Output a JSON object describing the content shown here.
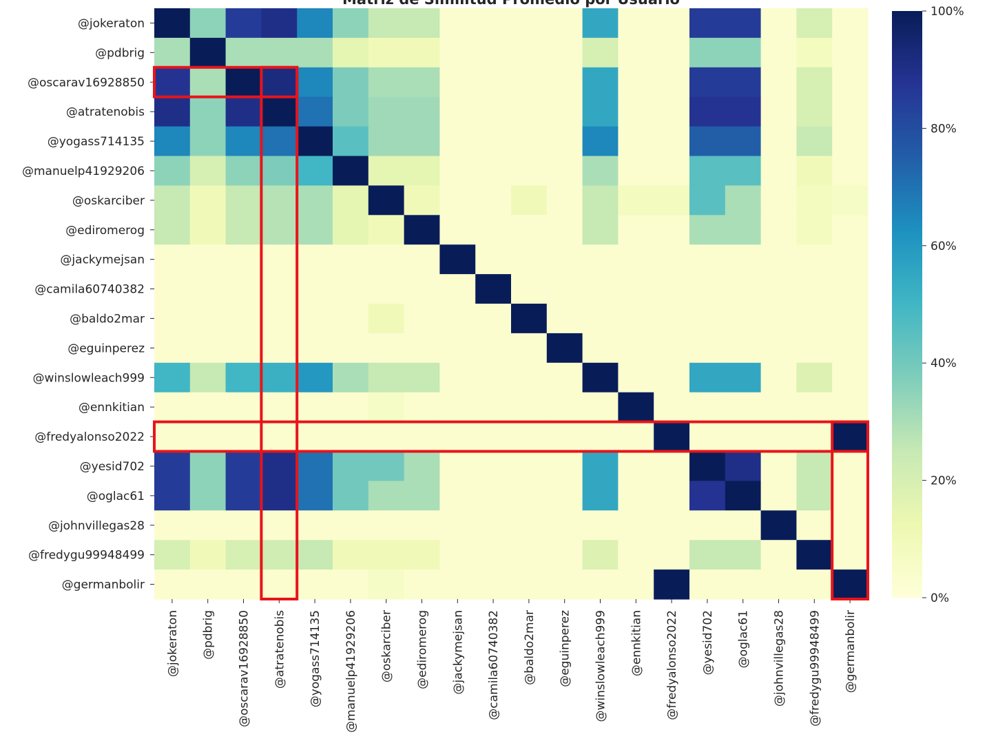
{
  "chart_data": {
    "type": "heatmap",
    "title": "Matriz de Similitud Promedio por Usuario",
    "labels": [
      "@jokeraton",
      "@pdbrig",
      "@oscarav16928850",
      "@atratenobis",
      "@yogass714135",
      "@manuelp41929206",
      "@oskarciber",
      "@ediromerog",
      "@jackymejsan",
      "@camila60740382",
      "@baldo2mar",
      "@eguinperez",
      "@winslowleach999",
      "@ennkitian",
      "@fredyalonso2022",
      "@yesid702",
      "@oglac61",
      "@johnvillegas28",
      "@fredygu99948499",
      "@germanbolir"
    ],
    "values": [
      [
        100,
        35,
        85,
        90,
        65,
        35,
        25,
        25,
        3,
        3,
        3,
        3,
        55,
        3,
        3,
        85,
        85,
        3,
        20,
        3
      ],
      [
        30,
        100,
        30,
        30,
        30,
        15,
        10,
        10,
        3,
        3,
        3,
        3,
        20,
        3,
        3,
        35,
        35,
        3,
        8,
        3
      ],
      [
        88,
        30,
        100,
        92,
        65,
        38,
        30,
        30,
        3,
        3,
        3,
        3,
        55,
        3,
        3,
        85,
        85,
        3,
        20,
        3
      ],
      [
        90,
        35,
        90,
        100,
        70,
        38,
        32,
        32,
        3,
        3,
        3,
        3,
        55,
        3,
        3,
        88,
        88,
        3,
        20,
        3
      ],
      [
        65,
        35,
        65,
        70,
        100,
        45,
        32,
        32,
        3,
        3,
        3,
        3,
        65,
        3,
        3,
        75,
        75,
        3,
        25,
        3
      ],
      [
        35,
        20,
        35,
        38,
        50,
        100,
        15,
        15,
        3,
        3,
        3,
        3,
        30,
        3,
        3,
        45,
        45,
        3,
        10,
        3
      ],
      [
        25,
        10,
        25,
        28,
        30,
        15,
        100,
        10,
        3,
        3,
        10,
        3,
        25,
        8,
        8,
        45,
        30,
        3,
        8,
        6
      ],
      [
        25,
        10,
        25,
        28,
        30,
        15,
        10,
        100,
        3,
        3,
        3,
        3,
        25,
        3,
        3,
        30,
        30,
        3,
        8,
        3
      ],
      [
        3,
        3,
        3,
        3,
        3,
        3,
        3,
        3,
        100,
        3,
        3,
        3,
        3,
        3,
        3,
        3,
        3,
        3,
        3,
        3
      ],
      [
        3,
        3,
        3,
        3,
        3,
        3,
        3,
        3,
        3,
        100,
        3,
        3,
        3,
        3,
        3,
        3,
        3,
        3,
        3,
        3
      ],
      [
        3,
        3,
        3,
        3,
        3,
        3,
        10,
        3,
        3,
        3,
        100,
        3,
        3,
        3,
        3,
        3,
        3,
        3,
        3,
        3
      ],
      [
        3,
        3,
        3,
        3,
        3,
        3,
        3,
        3,
        3,
        3,
        3,
        100,
        3,
        3,
        3,
        3,
        3,
        3,
        3,
        3
      ],
      [
        50,
        25,
        50,
        52,
        60,
        30,
        25,
        25,
        3,
        3,
        3,
        3,
        100,
        3,
        3,
        55,
        55,
        3,
        18,
        3
      ],
      [
        3,
        3,
        3,
        3,
        3,
        3,
        6,
        3,
        3,
        3,
        3,
        3,
        3,
        100,
        3,
        3,
        3,
        3,
        3,
        3
      ],
      [
        3,
        3,
        3,
        3,
        3,
        3,
        3,
        3,
        3,
        3,
        3,
        3,
        3,
        3,
        100,
        3,
        3,
        3,
        3,
        100
      ],
      [
        85,
        35,
        85,
        90,
        70,
        40,
        40,
        30,
        3,
        3,
        3,
        3,
        55,
        3,
        3,
        100,
        90,
        3,
        25,
        3
      ],
      [
        85,
        35,
        85,
        90,
        70,
        40,
        30,
        30,
        3,
        3,
        3,
        3,
        55,
        3,
        3,
        88,
        100,
        3,
        25,
        3
      ],
      [
        3,
        3,
        3,
        3,
        3,
        3,
        3,
        3,
        3,
        3,
        3,
        3,
        3,
        3,
        3,
        3,
        3,
        100,
        3,
        3
      ],
      [
        20,
        10,
        20,
        22,
        25,
        10,
        10,
        10,
        3,
        3,
        3,
        3,
        18,
        3,
        3,
        25,
        25,
        3,
        100,
        3
      ],
      [
        3,
        3,
        3,
        3,
        3,
        3,
        6,
        3,
        3,
        3,
        3,
        3,
        3,
        3,
        100,
        3,
        3,
        3,
        3,
        100
      ]
    ],
    "vmin": 0,
    "vmax": 100,
    "colormap": "YlGnBu",
    "colorbar": {
      "ticks": [
        0,
        20,
        40,
        60,
        80,
        100
      ],
      "tick_labels": [
        "0%",
        "20%",
        "40%",
        "60%",
        "80%",
        "100%"
      ]
    },
    "highlights": [
      {
        "type": "row-span",
        "row": 2,
        "from_col": 0,
        "to_col": 3
      },
      {
        "type": "column-span",
        "col": 3,
        "from_row": 2,
        "to_row": 19
      },
      {
        "type": "row-span",
        "row": 14,
        "from_col": 0,
        "to_col": 19
      },
      {
        "type": "column-span",
        "col": 19,
        "from_row": 14,
        "to_row": 19
      }
    ],
    "highlight_color": "#e8141a"
  }
}
